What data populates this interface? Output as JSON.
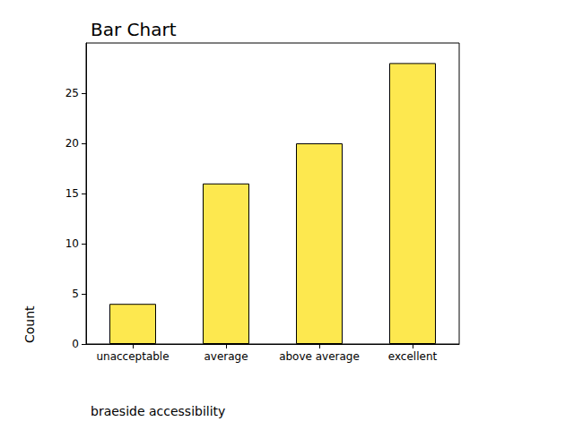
{
  "chart_data": {
    "type": "bar",
    "title": "Bar Chart",
    "x_label": "braeside accessibility",
    "y_label": "Count",
    "categories": [
      "unacceptable",
      "average",
      "above average",
      "excellent"
    ],
    "values": [
      4,
      16,
      20,
      28
    ],
    "color": "#fde84f",
    "ylim": [
      0,
      30
    ],
    "yticks": [
      0,
      5,
      10,
      15,
      20,
      25
    ],
    "grid": false
  }
}
